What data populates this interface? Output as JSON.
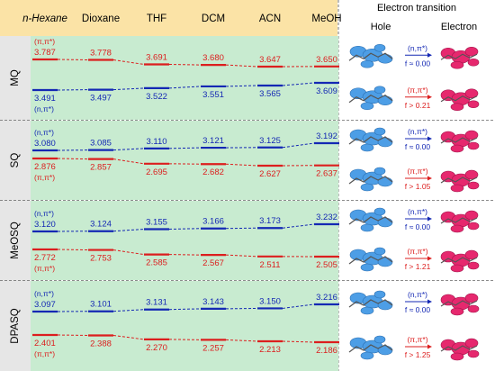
{
  "header": {
    "solvents": [
      "n-Hexane",
      "Dioxane",
      "THF",
      "DCM",
      "ACN",
      "MeOH"
    ],
    "transition_title": "Electron transition",
    "hole_label": "Hole",
    "electron_label": "Electron"
  },
  "colors": {
    "red": "#dc1e1e",
    "blue": "#1428b4",
    "header_bg": "#fbe3a6",
    "row_label_bg": "#e6e6e6",
    "panel_bg": "#c8ebd0",
    "hole_lobe": "#4d9ee6",
    "electron_lobe": "#e6286e"
  },
  "molecules": [
    {
      "name": "MQ",
      "upper": {
        "color": "red",
        "values": [
          "3.787",
          "3.778",
          "3.691",
          "3.680",
          "3.647",
          "3.650"
        ],
        "tag": "(π,π*)"
      },
      "lower": {
        "color": "blue",
        "values": [
          "3.491",
          "3.497",
          "3.522",
          "3.551",
          "3.565",
          "3.609"
        ],
        "tag": "(n,π*)"
      },
      "transitions": [
        {
          "type": "(n,π*)",
          "f": "f ≈ 0.00",
          "color": "blue"
        },
        {
          "type": "(π,π*)",
          "f": "f > 0.21",
          "color": "red"
        }
      ]
    },
    {
      "name": "SQ",
      "upper": {
        "color": "blue",
        "values": [
          "3.080",
          "3.085",
          "3.110",
          "3.121",
          "3.125",
          "3.192"
        ],
        "tag": "(n,π*)"
      },
      "lower": {
        "color": "red",
        "values": [
          "2.876",
          "2.857",
          "2.695",
          "2.682",
          "2.627",
          "2.637"
        ],
        "tag": "(π,π*)"
      },
      "transitions": [
        {
          "type": "(n,π*)",
          "f": "f ≈ 0.00",
          "color": "blue"
        },
        {
          "type": "(π,π*)",
          "f": "f > 1.05",
          "color": "red"
        }
      ]
    },
    {
      "name": "MeOSQ",
      "upper": {
        "color": "blue",
        "values": [
          "3.120",
          "3.124",
          "3.155",
          "3.166",
          "3.173",
          "3.232"
        ],
        "tag": "(n,π*)"
      },
      "lower": {
        "color": "red",
        "values": [
          "2.772",
          "2.753",
          "2.585",
          "2.567",
          "2.511",
          "2.505"
        ],
        "tag": "(π,π*)"
      },
      "transitions": [
        {
          "type": "(n,π*)",
          "f": "f ≈ 0.00",
          "color": "blue"
        },
        {
          "type": "(π,π*)",
          "f": "f > 1.21",
          "color": "red"
        }
      ]
    },
    {
      "name": "DPASQ",
      "upper": {
        "color": "blue",
        "values": [
          "3.097",
          "3.101",
          "3.131",
          "3.143",
          "3.150",
          "3.216"
        ],
        "tag": "(n,π*)"
      },
      "lower": {
        "color": "red",
        "values": [
          "2.401",
          "2.388",
          "2.270",
          "2.257",
          "2.213",
          "2.186"
        ],
        "tag": "(π,π*)"
      },
      "transitions": [
        {
          "type": "(n,π*)",
          "f": "f ≈ 0.00",
          "color": "blue"
        },
        {
          "type": "(π,π*)",
          "f": "f > 1.25",
          "color": "red"
        }
      ]
    }
  ]
}
